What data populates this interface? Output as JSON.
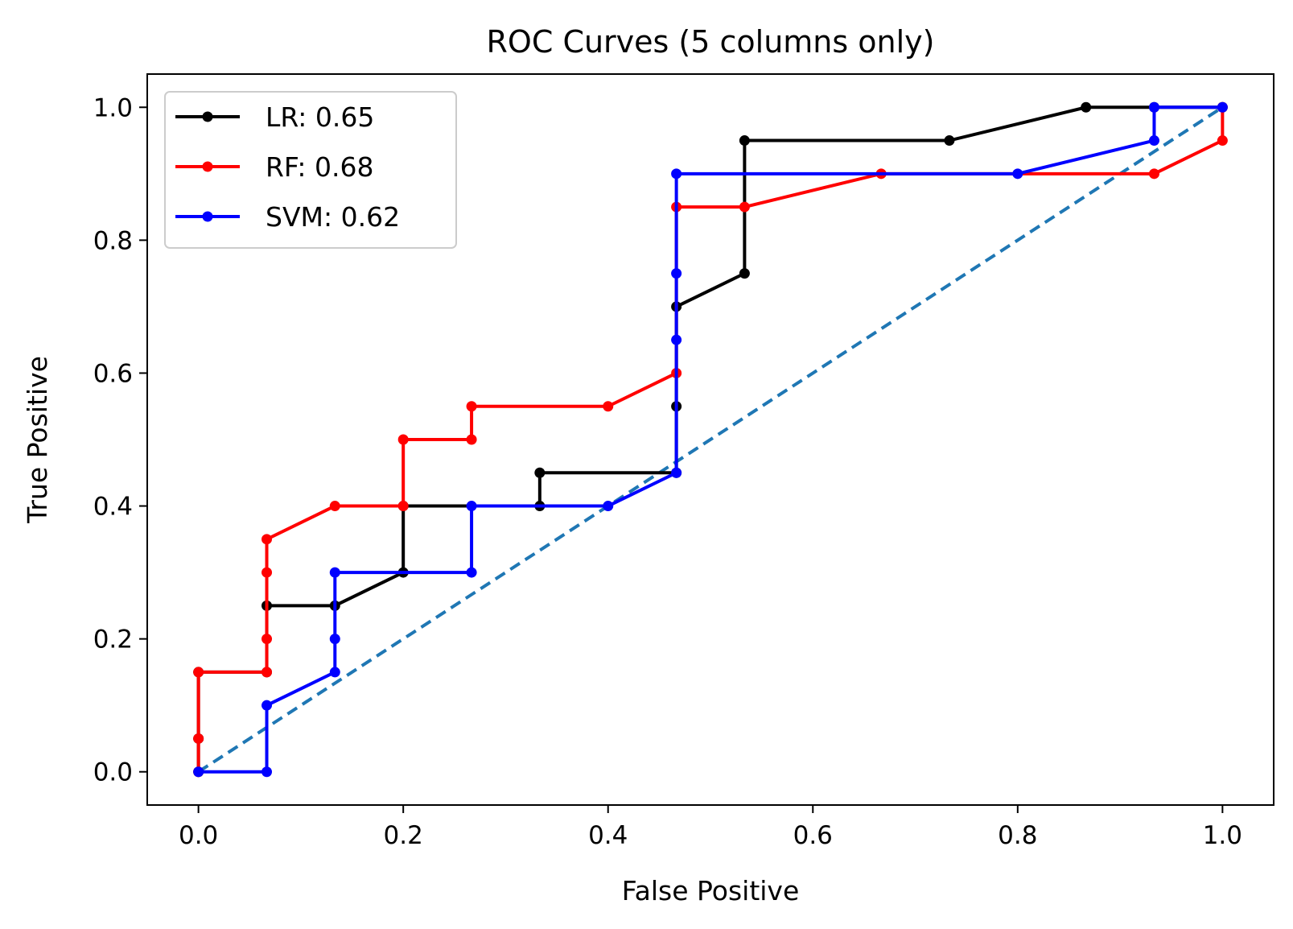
{
  "chart_data": {
    "type": "line",
    "title": "ROC Curves (5 columns only)",
    "xlabel": "False Positive",
    "ylabel": "True Positive",
    "xlim": [
      -0.05,
      1.05
    ],
    "ylim": [
      -0.05,
      1.05
    ],
    "xticks": [
      0.0,
      0.2,
      0.4,
      0.6,
      0.8,
      1.0
    ],
    "yticks": [
      0.0,
      0.2,
      0.4,
      0.6,
      0.8,
      1.0
    ],
    "xtick_labels": [
      "0.0",
      "0.2",
      "0.4",
      "0.6",
      "0.8",
      "1.0"
    ],
    "ytick_labels": [
      "0.0",
      "0.2",
      "0.4",
      "0.6",
      "0.8",
      "1.0"
    ],
    "grid": false,
    "legend_position": "top-left",
    "series": [
      {
        "name": "LR: 0.65",
        "color": "#000000",
        "marker": "dot",
        "x": [
          0,
          0,
          0,
          0.0667,
          0.0667,
          0.1333,
          0.2,
          0.2,
          0.3333,
          0.3333,
          0.4667,
          0.4667,
          0.4667,
          0.5333,
          0.5333,
          0.7333,
          0.8667,
          0.9333,
          1.0
        ],
        "y": [
          0,
          0.05,
          0.15,
          0.15,
          0.25,
          0.25,
          0.3,
          0.4,
          0.4,
          0.45,
          0.45,
          0.55,
          0.7,
          0.75,
          0.95,
          0.95,
          1.0,
          1.0,
          1.0
        ]
      },
      {
        "name": "RF: 0.68",
        "color": "#ff0000",
        "marker": "dot",
        "x": [
          0,
          0,
          0,
          0.0667,
          0.0667,
          0.0667,
          0.0667,
          0.1333,
          0.2,
          0.2,
          0.2667,
          0.2667,
          0.4,
          0.4667,
          0.4667,
          0.5333,
          0.6667,
          0.9333,
          1.0,
          1.0
        ],
        "y": [
          0,
          0.05,
          0.15,
          0.15,
          0.2,
          0.3,
          0.35,
          0.4,
          0.4,
          0.5,
          0.5,
          0.55,
          0.55,
          0.6,
          0.85,
          0.85,
          0.9,
          0.9,
          0.95,
          1.0
        ]
      },
      {
        "name": "SVM: 0.62",
        "color": "#0000ff",
        "marker": "dot",
        "x": [
          0,
          0.0667,
          0.0667,
          0.1333,
          0.1333,
          0.1333,
          0.2667,
          0.2667,
          0.4,
          0.4667,
          0.4667,
          0.4667,
          0.4667,
          0.8,
          0.9333,
          0.9333,
          1.0
        ],
        "y": [
          0,
          0,
          0.1,
          0.15,
          0.2,
          0.3,
          0.3,
          0.4,
          0.4,
          0.45,
          0.65,
          0.75,
          0.9,
          0.9,
          0.95,
          1.0,
          1.0
        ]
      }
    ],
    "reference_line": {
      "style": "dashed",
      "color": "#1f77b4",
      "x": [
        0,
        1
      ],
      "y": [
        0,
        1
      ]
    }
  }
}
